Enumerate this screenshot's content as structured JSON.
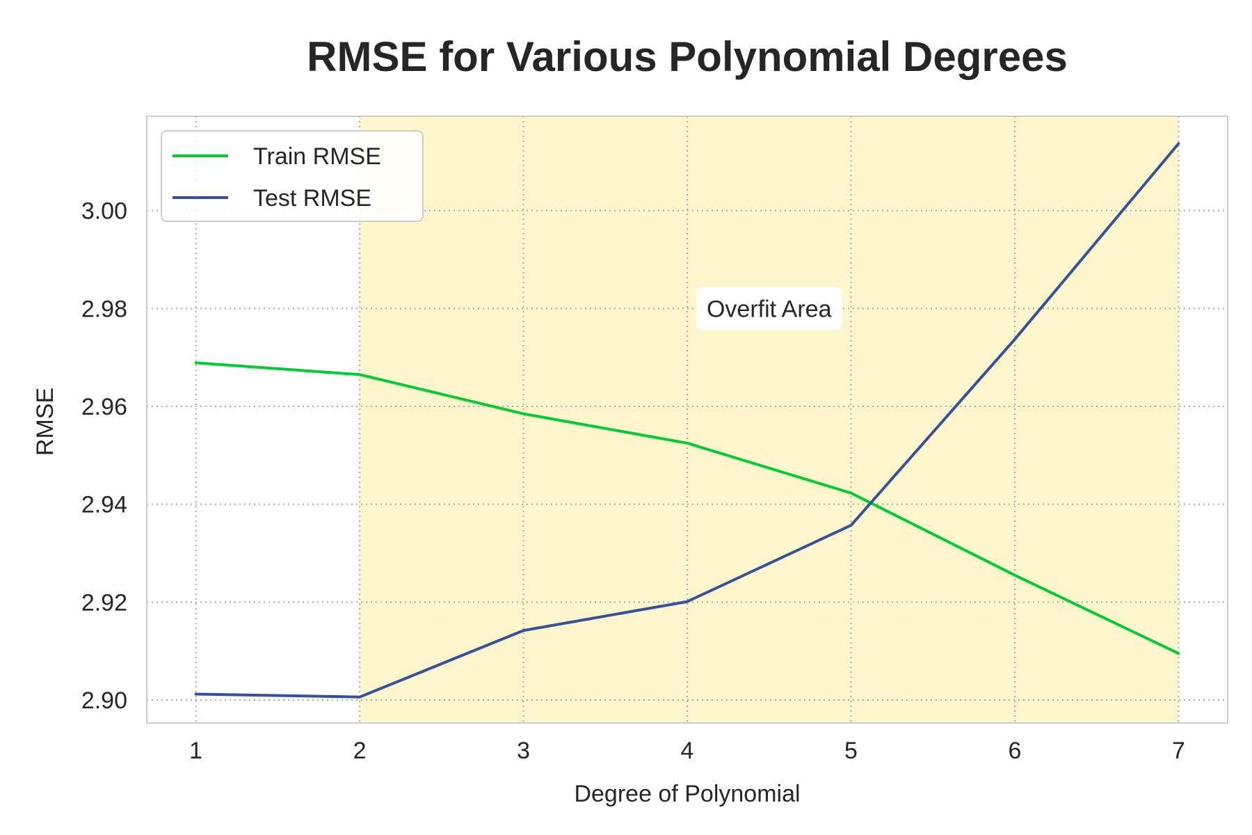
{
  "chart_data": {
    "type": "line",
    "title": "RMSE for Various Polynomial Degrees",
    "xlabel": "Degree of Polynomial",
    "ylabel": "RMSE",
    "x": [
      1,
      2,
      3,
      4,
      5,
      6,
      7
    ],
    "xlim": [
      0.7,
      7.3
    ],
    "ylim": [
      2.8953,
      3.0193
    ],
    "xticks": [
      1,
      2,
      3,
      4,
      5,
      6,
      7
    ],
    "yticks": [
      2.9,
      2.92,
      2.94,
      2.96,
      2.98,
      3.0
    ],
    "ytick_labels": [
      "2.90",
      "2.92",
      "2.94",
      "2.96",
      "2.98",
      "3.00"
    ],
    "grid": true,
    "legend_position": "upper left",
    "series": [
      {
        "name": "Train RMSE",
        "color": "#00cc33",
        "values": [
          2.9689,
          2.9665,
          2.9585,
          2.9525,
          2.9423,
          2.9255,
          2.9095
        ]
      },
      {
        "name": "Test RMSE",
        "color": "#3450a0",
        "values": [
          2.9012,
          2.9006,
          2.9142,
          2.9201,
          2.9357,
          2.9737,
          3.0137
        ]
      }
    ],
    "shaded_region": {
      "x_start": 2,
      "x_end": 7,
      "color": "#fdf6cd"
    },
    "annotation": {
      "text": "Overfit Area",
      "x": 4.5,
      "y": 2.98
    }
  }
}
